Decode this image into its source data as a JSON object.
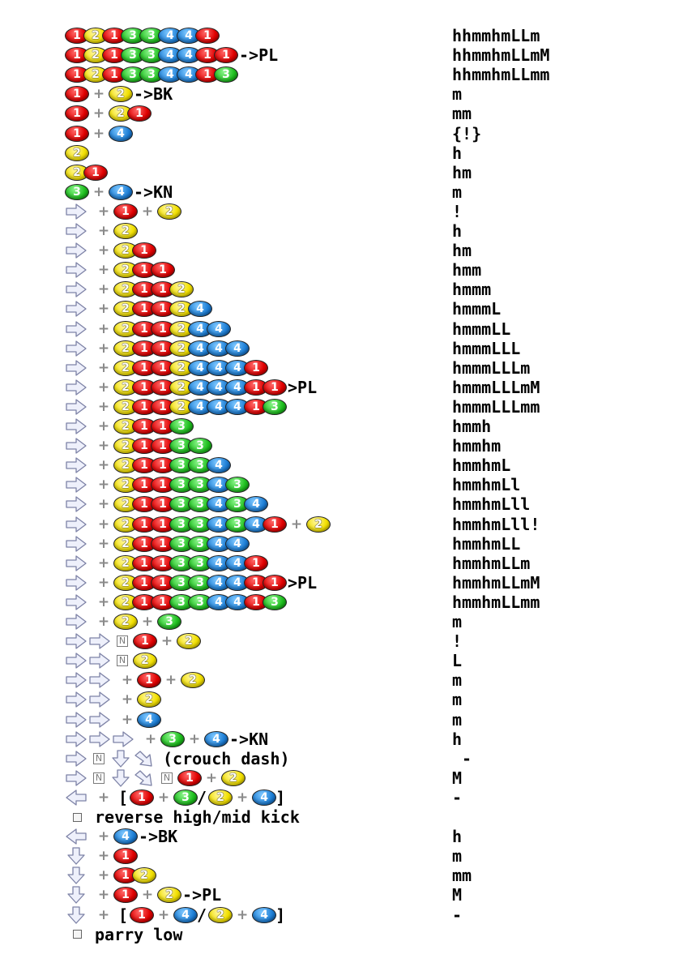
{
  "colors": {
    "1": "#e00000",
    "2": "#f2e000",
    "3": "#1fbf1f",
    "4": "#1e7fd6",
    "arrow_fill": "#eef0fb",
    "arrow_stroke": "#7d82a6"
  },
  "rows": [
    {
      "cmd": [
        {
          "b": "1"
        },
        {
          "b": "2"
        },
        {
          "b": "1"
        },
        {
          "b": "3"
        },
        {
          "b": "3"
        },
        {
          "b": "4"
        },
        {
          "b": "4"
        },
        {
          "b": "1"
        }
      ],
      "hit": "hhmmhmLLm"
    },
    {
      "cmd": [
        {
          "b": "1"
        },
        {
          "b": "2"
        },
        {
          "b": "1"
        },
        {
          "b": "3"
        },
        {
          "b": "3"
        },
        {
          "b": "4"
        },
        {
          "b": "4"
        },
        {
          "b": "1"
        },
        {
          "b": "1"
        },
        {
          "t": "->PL"
        }
      ],
      "hit": "hhmmhmLLmM"
    },
    {
      "cmd": [
        {
          "b": "1"
        },
        {
          "b": "2"
        },
        {
          "b": "1"
        },
        {
          "b": "3"
        },
        {
          "b": "3"
        },
        {
          "b": "4"
        },
        {
          "b": "4"
        },
        {
          "b": "1"
        },
        {
          "b": "3"
        }
      ],
      "hit": "hhmmhmLLmm"
    },
    {
      "cmd": [
        {
          "b": "1"
        },
        {
          "p": 1
        },
        {
          "b": "2"
        },
        {
          "t": "->BK"
        }
      ],
      "hit": "m"
    },
    {
      "cmd": [
        {
          "b": "1"
        },
        {
          "p": 1
        },
        {
          "b": "2"
        },
        {
          "b": "1"
        }
      ],
      "hit": "mm"
    },
    {
      "cmd": [
        {
          "b": "1"
        },
        {
          "p": 1
        },
        {
          "b": "4"
        }
      ],
      "hit": "{!}"
    },
    {
      "cmd": [
        {
          "b": "2"
        }
      ],
      "hit": "h"
    },
    {
      "cmd": [
        {
          "b": "2"
        },
        {
          "b": "1"
        }
      ],
      "hit": "hm"
    },
    {
      "cmd": [
        {
          "b": "3"
        },
        {
          "p": 1
        },
        {
          "b": "4"
        },
        {
          "t": "->KN"
        }
      ],
      "hit": "m"
    },
    {
      "cmd": [
        {
          "a": "r"
        },
        {
          "p": 1
        },
        {
          "b": "1"
        },
        {
          "p": 1
        },
        {
          "b": "2"
        }
      ],
      "hit": "!"
    },
    {
      "cmd": [
        {
          "a": "r"
        },
        {
          "p": 1
        },
        {
          "b": "2"
        }
      ],
      "hit": "h"
    },
    {
      "cmd": [
        {
          "a": "r"
        },
        {
          "p": 1
        },
        {
          "b": "2"
        },
        {
          "b": "1"
        }
      ],
      "hit": "hm"
    },
    {
      "cmd": [
        {
          "a": "r"
        },
        {
          "p": 1
        },
        {
          "b": "2"
        },
        {
          "b": "1"
        },
        {
          "b": "1"
        }
      ],
      "hit": "hmm"
    },
    {
      "cmd": [
        {
          "a": "r"
        },
        {
          "p": 1
        },
        {
          "b": "2"
        },
        {
          "b": "1"
        },
        {
          "b": "1"
        },
        {
          "b": "2"
        }
      ],
      "hit": "hmmm"
    },
    {
      "cmd": [
        {
          "a": "r"
        },
        {
          "p": 1
        },
        {
          "b": "2"
        },
        {
          "b": "1"
        },
        {
          "b": "1"
        },
        {
          "b": "2"
        },
        {
          "b": "4"
        }
      ],
      "hit": "hmmmL"
    },
    {
      "cmd": [
        {
          "a": "r"
        },
        {
          "p": 1
        },
        {
          "b": "2"
        },
        {
          "b": "1"
        },
        {
          "b": "1"
        },
        {
          "b": "2"
        },
        {
          "b": "4"
        },
        {
          "b": "4"
        }
      ],
      "hit": "hmmmLL"
    },
    {
      "cmd": [
        {
          "a": "r"
        },
        {
          "p": 1
        },
        {
          "b": "2"
        },
        {
          "b": "1"
        },
        {
          "b": "1"
        },
        {
          "b": "2"
        },
        {
          "b": "4"
        },
        {
          "b": "4"
        },
        {
          "b": "4"
        }
      ],
      "hit": "hmmmLLL"
    },
    {
      "cmd": [
        {
          "a": "r"
        },
        {
          "p": 1
        },
        {
          "b": "2"
        },
        {
          "b": "1"
        },
        {
          "b": "1"
        },
        {
          "b": "2"
        },
        {
          "b": "4"
        },
        {
          "b": "4"
        },
        {
          "b": "4"
        },
        {
          "b": "1"
        }
      ],
      "hit": "hmmmLLLm"
    },
    {
      "cmd": [
        {
          "a": "r"
        },
        {
          "p": 1
        },
        {
          "b": "2"
        },
        {
          "b": "1"
        },
        {
          "b": "1"
        },
        {
          "b": "2"
        },
        {
          "b": "4"
        },
        {
          "b": "4"
        },
        {
          "b": "4"
        },
        {
          "b": "1"
        },
        {
          "b": "1"
        },
        {
          "t": ">PL"
        }
      ],
      "hit": "hmmmLLLmM"
    },
    {
      "cmd": [
        {
          "a": "r"
        },
        {
          "p": 1
        },
        {
          "b": "2"
        },
        {
          "b": "1"
        },
        {
          "b": "1"
        },
        {
          "b": "2"
        },
        {
          "b": "4"
        },
        {
          "b": "4"
        },
        {
          "b": "4"
        },
        {
          "b": "1"
        },
        {
          "b": "3"
        }
      ],
      "hit": "hmmmLLLmm"
    },
    {
      "cmd": [
        {
          "a": "r"
        },
        {
          "p": 1
        },
        {
          "b": "2"
        },
        {
          "b": "1"
        },
        {
          "b": "1"
        },
        {
          "b": "3"
        }
      ],
      "hit": "hmmh"
    },
    {
      "cmd": [
        {
          "a": "r"
        },
        {
          "p": 1
        },
        {
          "b": "2"
        },
        {
          "b": "1"
        },
        {
          "b": "1"
        },
        {
          "b": "3"
        },
        {
          "b": "3"
        }
      ],
      "hit": "hmmhm"
    },
    {
      "cmd": [
        {
          "a": "r"
        },
        {
          "p": 1
        },
        {
          "b": "2"
        },
        {
          "b": "1"
        },
        {
          "b": "1"
        },
        {
          "b": "3"
        },
        {
          "b": "3"
        },
        {
          "b": "4"
        }
      ],
      "hit": "hmmhmL"
    },
    {
      "cmd": [
        {
          "a": "r"
        },
        {
          "p": 1
        },
        {
          "b": "2"
        },
        {
          "b": "1"
        },
        {
          "b": "1"
        },
        {
          "b": "3"
        },
        {
          "b": "3"
        },
        {
          "b": "4"
        },
        {
          "b": "3"
        }
      ],
      "hit": "hmmhmLl"
    },
    {
      "cmd": [
        {
          "a": "r"
        },
        {
          "p": 1
        },
        {
          "b": "2"
        },
        {
          "b": "1"
        },
        {
          "b": "1"
        },
        {
          "b": "3"
        },
        {
          "b": "3"
        },
        {
          "b": "4"
        },
        {
          "b": "3"
        },
        {
          "b": "4"
        }
      ],
      "hit": "hmmhmLll"
    },
    {
      "cmd": [
        {
          "a": "r"
        },
        {
          "p": 1
        },
        {
          "b": "2"
        },
        {
          "b": "1"
        },
        {
          "b": "1"
        },
        {
          "b": "3"
        },
        {
          "b": "3"
        },
        {
          "b": "4"
        },
        {
          "b": "3"
        },
        {
          "b": "4"
        },
        {
          "b": "1"
        },
        {
          "p": 1
        },
        {
          "b": "2"
        }
      ],
      "hit": "hmmhmLll!"
    },
    {
      "cmd": [
        {
          "a": "r"
        },
        {
          "p": 1
        },
        {
          "b": "2"
        },
        {
          "b": "1"
        },
        {
          "b": "1"
        },
        {
          "b": "3"
        },
        {
          "b": "3"
        },
        {
          "b": "4"
        },
        {
          "b": "4"
        }
      ],
      "hit": "hmmhmLL"
    },
    {
      "cmd": [
        {
          "a": "r"
        },
        {
          "p": 1
        },
        {
          "b": "2"
        },
        {
          "b": "1"
        },
        {
          "b": "1"
        },
        {
          "b": "3"
        },
        {
          "b": "3"
        },
        {
          "b": "4"
        },
        {
          "b": "4"
        },
        {
          "b": "1"
        }
      ],
      "hit": "hmmhmLLm"
    },
    {
      "cmd": [
        {
          "a": "r"
        },
        {
          "p": 1
        },
        {
          "b": "2"
        },
        {
          "b": "1"
        },
        {
          "b": "1"
        },
        {
          "b": "3"
        },
        {
          "b": "3"
        },
        {
          "b": "4"
        },
        {
          "b": "4"
        },
        {
          "b": "1"
        },
        {
          "b": "1"
        },
        {
          "t": ">PL"
        }
      ],
      "hit": "hmmhmLLmM"
    },
    {
      "cmd": [
        {
          "a": "r"
        },
        {
          "p": 1
        },
        {
          "b": "2"
        },
        {
          "b": "1"
        },
        {
          "b": "1"
        },
        {
          "b": "3"
        },
        {
          "b": "3"
        },
        {
          "b": "4"
        },
        {
          "b": "4"
        },
        {
          "b": "1"
        },
        {
          "b": "3"
        }
      ],
      "hit": "hmmhmLLmm"
    },
    {
      "cmd": [
        {
          "a": "r"
        },
        {
          "p": 1
        },
        {
          "b": "2"
        },
        {
          "p": 1
        },
        {
          "b": "3"
        }
      ],
      "hit": "m"
    },
    {
      "cmd": [
        {
          "a": "r"
        },
        {
          "a": "r"
        },
        {
          "n": "N"
        },
        {
          "b": "1"
        },
        {
          "p": 1
        },
        {
          "b": "2"
        }
      ],
      "hit": "!"
    },
    {
      "cmd": [
        {
          "a": "r"
        },
        {
          "a": "r"
        },
        {
          "n": "N"
        },
        {
          "b": "2"
        }
      ],
      "hit": "L"
    },
    {
      "cmd": [
        {
          "a": "r"
        },
        {
          "a": "r"
        },
        {
          "p": 1
        },
        {
          "b": "1"
        },
        {
          "p": 1
        },
        {
          "b": "2"
        }
      ],
      "hit": "m"
    },
    {
      "cmd": [
        {
          "a": "r"
        },
        {
          "a": "r"
        },
        {
          "p": 1
        },
        {
          "b": "2"
        }
      ],
      "hit": "m"
    },
    {
      "cmd": [
        {
          "a": "r"
        },
        {
          "a": "r"
        },
        {
          "p": 1
        },
        {
          "b": "4"
        }
      ],
      "hit": "m"
    },
    {
      "cmd": [
        {
          "a": "r"
        },
        {
          "a": "r"
        },
        {
          "a": "r"
        },
        {
          "p": 1
        },
        {
          "b": "3"
        },
        {
          "p": 1
        },
        {
          "b": "4"
        },
        {
          "t": "->KN"
        }
      ],
      "hit": "h"
    },
    {
      "cmd": [
        {
          "a": "r"
        },
        {
          "n": "N"
        },
        {
          "a": "d"
        },
        {
          "a": "dr"
        },
        {
          "t": "(crouch dash)"
        }
      ],
      "hit": " -"
    },
    {
      "cmd": [
        {
          "a": "r"
        },
        {
          "n": "N"
        },
        {
          "a": "d"
        },
        {
          "a": "dr"
        },
        {
          "n": "N"
        },
        {
          "b": "1"
        },
        {
          "p": 1
        },
        {
          "b": "2"
        }
      ],
      "hit": "M"
    },
    {
      "cmd": [
        {
          "a": "l"
        },
        {
          "p": 1
        },
        {
          "t": "["
        },
        {
          "b": "1"
        },
        {
          "p": 1
        },
        {
          "b": "3"
        },
        {
          "t": "/"
        },
        {
          "b": "2"
        },
        {
          "p": 1
        },
        {
          "b": "4"
        },
        {
          "t": "]"
        }
      ],
      "hit": "-"
    },
    {
      "cmd": [
        {
          "bullet": 1
        },
        {
          "t": "reverse high/mid kick"
        }
      ],
      "hit": ""
    },
    {
      "cmd": [
        {
          "a": "l"
        },
        {
          "p": 1
        },
        {
          "b": "4"
        },
        {
          "t": "->BK"
        }
      ],
      "hit": "h"
    },
    {
      "cmd": [
        {
          "a": "d"
        },
        {
          "p": 1
        },
        {
          "b": "1"
        }
      ],
      "hit": "m"
    },
    {
      "cmd": [
        {
          "a": "d"
        },
        {
          "p": 1
        },
        {
          "b": "1"
        },
        {
          "b": "2"
        }
      ],
      "hit": "mm"
    },
    {
      "cmd": [
        {
          "a": "d"
        },
        {
          "p": 1
        },
        {
          "b": "1"
        },
        {
          "p": 1
        },
        {
          "b": "2"
        },
        {
          "t": "->PL"
        }
      ],
      "hit": "M"
    },
    {
      "cmd": [
        {
          "a": "d"
        },
        {
          "p": 1
        },
        {
          "t": "["
        },
        {
          "b": "1"
        },
        {
          "p": 1
        },
        {
          "b": "4"
        },
        {
          "t": "/"
        },
        {
          "b": "2"
        },
        {
          "p": 1
        },
        {
          "b": "4"
        },
        {
          "t": "]"
        }
      ],
      "hit": "-"
    },
    {
      "cmd": [
        {
          "bullet": 1
        },
        {
          "t": "parry low"
        }
      ],
      "hit": ""
    }
  ]
}
